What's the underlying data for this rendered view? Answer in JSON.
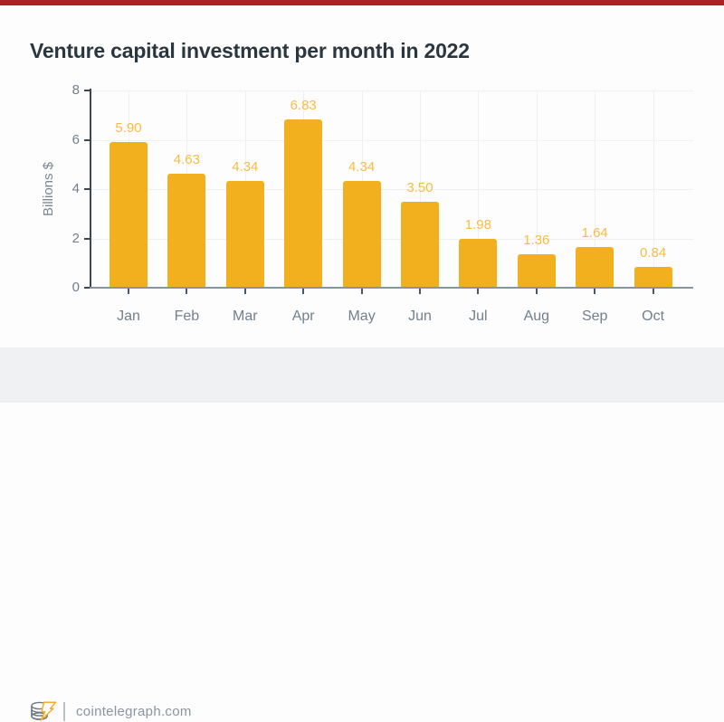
{
  "page": {
    "background": "#fdfdfd",
    "top_accent_color": "#ac2026"
  },
  "chart_data": {
    "type": "bar",
    "title": "Venture capital investment per month in 2022",
    "categories": [
      "Jan",
      "Feb",
      "Mar",
      "Apr",
      "May",
      "Jun",
      "Jul",
      "Aug",
      "Sep",
      "Oct"
    ],
    "values": [
      5.9,
      4.63,
      4.34,
      6.83,
      4.34,
      3.5,
      1.98,
      1.36,
      1.64,
      0.84
    ],
    "value_labels": [
      "5.90",
      "4.63",
      "4.34",
      "6.83",
      "4.34",
      "3.50",
      "1.98",
      "1.36",
      "1.64",
      "0.84"
    ],
    "xlabel": "",
    "ylabel": "Billions $",
    "ylim": [
      0,
      8
    ],
    "yticks": [
      0,
      2,
      4,
      6,
      8
    ],
    "grid": true,
    "legend": false,
    "bar_color": "#f3b01e",
    "value_label_color": "#f8bc45"
  },
  "colors": {
    "title_text": "#2b3740",
    "y_axis_line": "#3a4854",
    "x_axis_line": "#8a949e",
    "y_tick_mark": "#3a4854",
    "x_tick_mark": "#4a5764",
    "tick_label_text": "#72808e",
    "axis_label_text": "#7a8794",
    "gridline": "#eef1f3",
    "footer_band": "#eff1f3",
    "footer_text": "#8a95a1",
    "footer_divider": "#b8c0c8",
    "logo_coin_stroke": "#6e7a85",
    "logo_bolt_stroke": "#f2af25"
  },
  "footer": {
    "site_label": "cointelegraph.com",
    "icon": "cointelegraph-coins-icon"
  }
}
